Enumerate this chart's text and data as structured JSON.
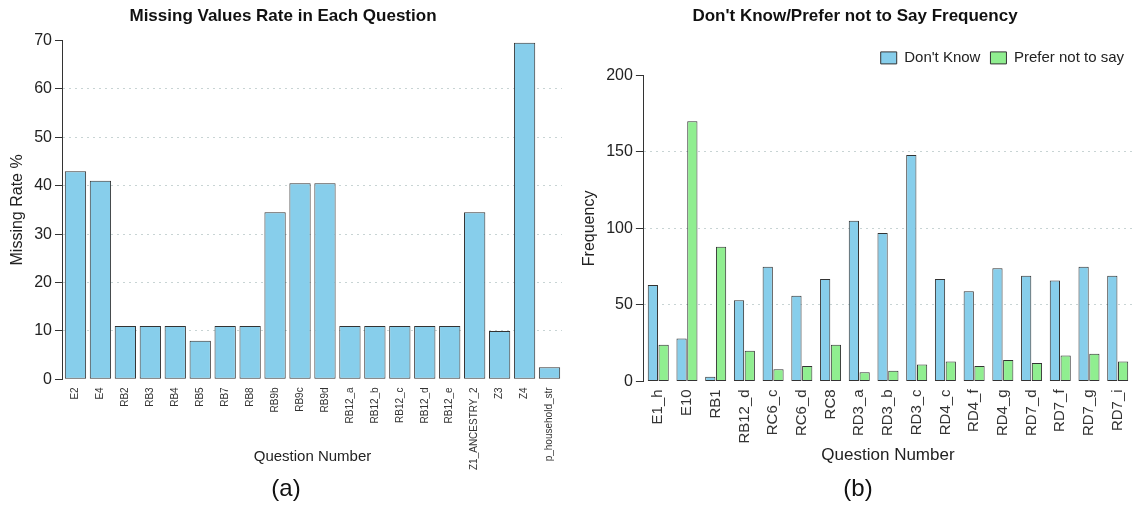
{
  "chart_data": [
    {
      "type": "bar",
      "title": "Missing Values Rate in Each Question",
      "xlabel": "Question Number",
      "ylabel": "Missing Rate %",
      "categories": [
        "E2",
        "E4",
        "RB2",
        "RB3",
        "RB4",
        "RB5",
        "RB7",
        "RB8",
        "RB9b",
        "RB9c",
        "RB9d",
        "RB12_a",
        "RB12_b",
        "RB12_c",
        "RB12_d",
        "RB12_e",
        "Z1_ANCESTRY_2",
        "Z3",
        "Z4",
        "p_household_str"
      ],
      "values": [
        43,
        41,
        11,
        11,
        11,
        8,
        11,
        11,
        34.5,
        40.5,
        40.5,
        11,
        11,
        11,
        11,
        11,
        34.5,
        10,
        69.5,
        2.5
      ],
      "color": "#87ceeb",
      "ylim": [
        0,
        70
      ],
      "yticks": [
        0,
        10,
        20,
        30,
        40,
        50,
        60,
        70
      ],
      "grid": "y",
      "legend": false,
      "annotations": [
        "(a)"
      ]
    },
    {
      "type": "bar",
      "title": "Don't Know/Prefer not to Say Frequency",
      "xlabel": "Question Number",
      "ylabel": "Frequency",
      "categories": [
        "E1_h",
        "E10",
        "RB1",
        "RB12_d",
        "RC6_c",
        "RC6_d",
        "RC8",
        "RD3_a",
        "RD3_b",
        "RD3_c",
        "RD4_c",
        "RD4_f",
        "RD4_g",
        "RD7_d",
        "RD7_f",
        "RD7_g",
        "RD7_i"
      ],
      "series": [
        {
          "name": "Don't Know",
          "color": "#87ceeb",
          "values": [
            63,
            28,
            3,
            53,
            75,
            56,
            67,
            105,
            97,
            148,
            67,
            59,
            74,
            69,
            66,
            75,
            69
          ]
        },
        {
          "name": "Prefer not to say",
          "color": "#90ee90",
          "values": [
            24,
            170,
            88,
            20,
            8,
            10,
            24,
            6,
            7,
            11,
            13,
            10,
            14,
            12,
            17,
            18,
            13
          ]
        }
      ],
      "ylim": [
        0,
        200
      ],
      "yticks": [
        0,
        50,
        100,
        150,
        200
      ],
      "grid": "y",
      "legend": "top right",
      "annotations": [
        "(b)"
      ]
    }
  ]
}
